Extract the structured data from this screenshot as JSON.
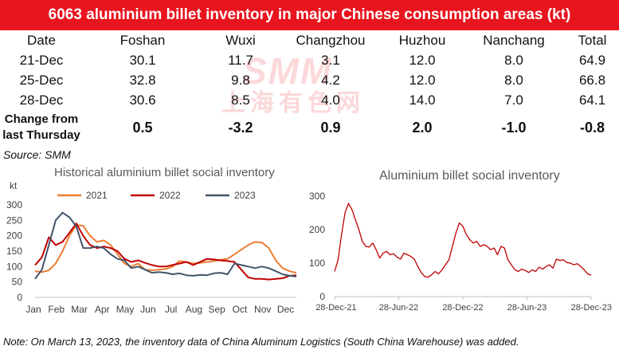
{
  "title": "6063 aluminium billet inventory in major Chinese consumption areas (kt)",
  "table": {
    "headers": [
      "Date",
      "Foshan",
      "Wuxi",
      "Changzhou",
      "Huzhou",
      "Nanchang",
      "Total"
    ],
    "rows": [
      [
        "21-Dec",
        "30.1",
        "11.7",
        "3.1",
        "12.0",
        "8.0",
        "64.9"
      ],
      [
        "25-Dec",
        "32.8",
        "9.8",
        "4.2",
        "12.0",
        "8.0",
        "66.8"
      ],
      [
        "28-Dec",
        "30.6",
        "8.5",
        "4.0",
        "14.0",
        "7.0",
        "64.1"
      ]
    ],
    "change_label_line1": "Change from",
    "change_label_line2": "last Thursday",
    "change_values": [
      "0.5",
      "-3.2",
      "0.9",
      "2.0",
      "-1.0",
      "-0.8"
    ]
  },
  "source": "Source: SMM",
  "watermark": {
    "brand": "SMM",
    "chinese": "上海有色网"
  },
  "note": "Note: On March 13, 2023, the inventory data of China Aluminum Logistics (South China Warehouse) was added.",
  "colors": {
    "title_bar": "#e8141e",
    "s2021": "#ed7d31",
    "s2022": "#c00000",
    "s2023": "#44546a",
    "right_line": "#c00000"
  },
  "chart_data": [
    {
      "type": "line",
      "title": "Historical aluminium billet social inventory",
      "ylabel": "kt",
      "ylim": [
        0,
        300
      ],
      "yticks": [
        "0",
        "50",
        "100",
        "150",
        "200",
        "250",
        "300"
      ],
      "xticks": [
        "Jan",
        "Feb",
        "Mar",
        "Apr",
        "May",
        "Jun",
        "Jul",
        "Aug",
        "Sep",
        "Oct",
        "Nov",
        "Dec"
      ],
      "grid": false,
      "legend": "top",
      "x": [
        1,
        1.3,
        1.6,
        1.9,
        2.2,
        2.5,
        2.8,
        3.1,
        3.4,
        3.7,
        4.0,
        4.3,
        4.6,
        4.9,
        5.2,
        5.5,
        5.8,
        6.1,
        6.4,
        6.7,
        7.0,
        7.3,
        7.6,
        7.9,
        8.2,
        8.5,
        8.8,
        9.1,
        9.4,
        9.7,
        10.0,
        10.3,
        10.6,
        10.9,
        11.2,
        11.5,
        11.8,
        12.1,
        12.4
      ],
      "series": [
        {
          "name": "2021",
          "values": [
            85,
            82,
            88,
            110,
            150,
            200,
            235,
            232,
            200,
            180,
            185,
            170,
            140,
            110,
            100,
            110,
            90,
            88,
            90,
            92,
            100,
            118,
            115,
            110,
            112,
            115,
            118,
            122,
            125,
            140,
            155,
            170,
            180,
            178,
            160,
            120,
            95,
            85,
            80
          ]
        },
        {
          "name": "2022",
          "values": [
            105,
            130,
            195,
            170,
            180,
            210,
            240,
            200,
            170,
            160,
            165,
            160,
            150,
            125,
            115,
            120,
            112,
            105,
            100,
            100,
            105,
            110,
            115,
            105,
            115,
            125,
            123,
            120,
            118,
            115,
            90,
            65,
            60,
            60,
            58,
            60,
            62,
            70,
            72
          ]
        },
        {
          "name": "2023",
          "values": [
            60,
            90,
            170,
            250,
            275,
            260,
            230,
            160,
            160,
            165,
            160,
            140,
            125,
            120,
            95,
            100,
            90,
            80,
            82,
            80,
            75,
            78,
            72,
            70,
            73,
            72,
            78,
            80,
            75,
            110,
            105,
            100,
            95,
            100,
            95,
            85,
            75,
            70,
            68
          ]
        }
      ]
    },
    {
      "type": "line",
      "title": "Aluminium billet social inventory",
      "ylim": [
        0,
        300
      ],
      "yticks": [
        "0",
        "100",
        "200",
        "300"
      ],
      "xticks": [
        "28-Dec-21",
        "28-Jun-22",
        "28-Dec-22",
        "28-Jun-23",
        "28-Dec-23"
      ],
      "grid": false,
      "series": [
        {
          "name": "",
          "values": [
            75,
            110,
            185,
            250,
            278,
            260,
            230,
            200,
            165,
            150,
            148,
            160,
            140,
            115,
            130,
            135,
            125,
            128,
            118,
            112,
            130,
            125,
            120,
            112,
            90,
            72,
            60,
            58,
            65,
            75,
            68,
            80,
            95,
            110,
            150,
            190,
            220,
            210,
            185,
            170,
            160,
            165,
            150,
            155,
            150,
            140,
            145,
            125,
            150,
            145,
            110,
            95,
            80,
            75,
            82,
            78,
            72,
            80,
            75,
            88,
            82,
            90,
            95,
            85,
            112,
            108,
            110,
            102,
            100,
            95,
            98,
            90,
            80,
            68,
            64
          ]
        }
      ]
    }
  ]
}
